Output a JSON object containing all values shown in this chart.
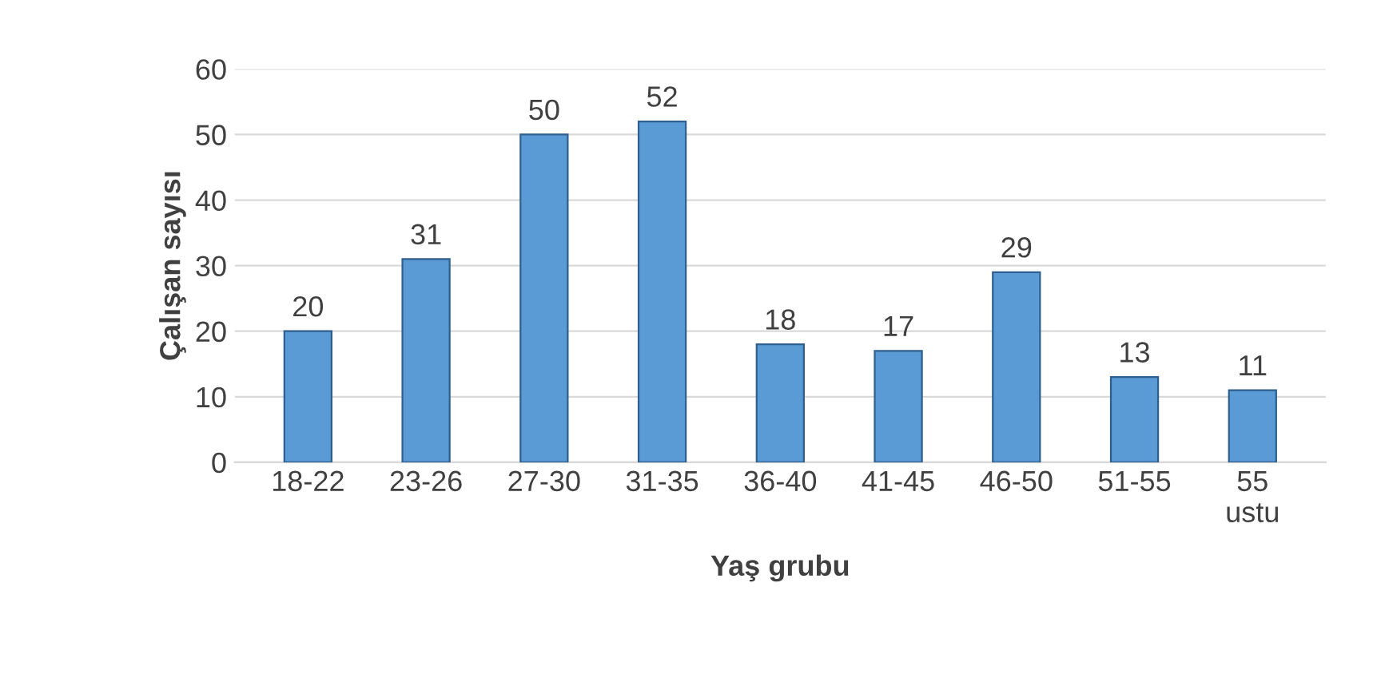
{
  "chart_data": {
    "type": "bar",
    "xlabel": "Yaş grubu",
    "ylabel": "Çalışan sayısı",
    "categories": [
      "18-22",
      "23-26",
      "27-30",
      "31-35",
      "36-40",
      "41-45",
      "46-50",
      "51-55",
      "55\nustu"
    ],
    "values": [
      20,
      31,
      50,
      52,
      18,
      17,
      29,
      13,
      11
    ],
    "color": "#5b9bd5",
    "ylim": [
      0,
      60
    ],
    "yticks": [
      0,
      10,
      20,
      30,
      40,
      50,
      60
    ],
    "grid": "y",
    "data_labels": true
  }
}
